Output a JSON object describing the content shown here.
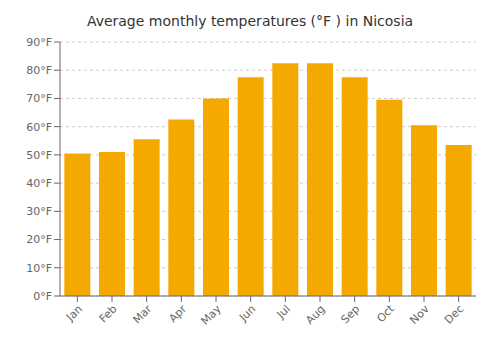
{
  "chart_data": {
    "type": "bar",
    "title": "Average monthly temperatures (°F ) in Nicosia",
    "categories": [
      "Jan",
      "Feb",
      "Mar",
      "Apr",
      "May",
      "Jun",
      "Jul",
      "Aug",
      "Sep",
      "Oct",
      "Nov",
      "Dec"
    ],
    "values": [
      50.5,
      51.0,
      55.5,
      62.5,
      70.0,
      77.5,
      82.5,
      82.5,
      77.5,
      69.5,
      60.5,
      53.5
    ],
    "color": "#F5A800",
    "ylim": [
      0,
      90
    ],
    "yticks": [
      {
        "value": 0,
        "label": "0°F"
      },
      {
        "value": 10,
        "label": "10°F"
      },
      {
        "value": 20,
        "label": "20°F"
      },
      {
        "value": 30,
        "label": "30°F"
      },
      {
        "value": 40,
        "label": "40°F"
      },
      {
        "value": 50,
        "label": "50°F"
      },
      {
        "value": 60,
        "label": "60°F"
      },
      {
        "value": 70,
        "label": "70°F"
      },
      {
        "value": 80,
        "label": "80°F"
      },
      {
        "value": 90,
        "label": "90°F"
      }
    ],
    "grid": true
  }
}
